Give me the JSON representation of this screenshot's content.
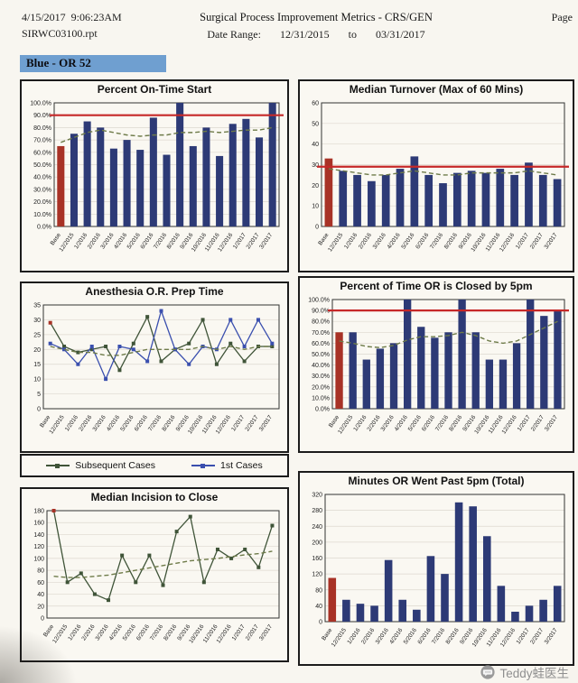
{
  "header": {
    "datetime": "4/15/2017  9:06:23AM",
    "report_file": "SIRWC03100.rpt",
    "title": "Surgical Process Improvement Metrics - CRS/GEN",
    "date_range_label": "Date Range:",
    "date_from": "12/31/2015",
    "date_to_word": "to",
    "date_to": "03/31/2017",
    "page_label": "Page"
  },
  "section_label": "Blue - OR 52",
  "watermark": {
    "text": "Teddy蛙医生"
  },
  "colors": {
    "bar": "#2d3a76",
    "base_bar": "#a83226",
    "ref_line": "#c62828",
    "trend_line": "#6e7b49",
    "series_subsequent": "#3f5438",
    "series_first": "#3a4fae",
    "section_highlight": "#6f9fd0"
  },
  "categories": [
    "Base",
    "12/2015",
    "1/2016",
    "2/2016",
    "3/2016",
    "4/2016",
    "5/2016",
    "6/2016",
    "7/2016",
    "8/2016",
    "9/2016",
    "10/2016",
    "11/2016",
    "12/2016",
    "1/2017",
    "2/2017",
    "3/2017"
  ],
  "chart_data": [
    {
      "type": "bar",
      "title": "Percent On-Time Start",
      "fmt": "pct",
      "ylim": [
        0,
        100
      ],
      "ytick": 10,
      "values": [
        65,
        75,
        85,
        80,
        63,
        70,
        62,
        88,
        58,
        100,
        65,
        80,
        57,
        83,
        87,
        72,
        100
      ],
      "trend": [
        68,
        72,
        76,
        78,
        76,
        74,
        73,
        74,
        74,
        76,
        76,
        77,
        76,
        77,
        78,
        78,
        80
      ],
      "ref": 90
    },
    {
      "type": "bar",
      "title": "Median Turnover (Max of 60 Mins)",
      "fmt": "int",
      "ylim": [
        0,
        60
      ],
      "ytick": 10,
      "values": [
        33,
        27,
        25,
        22,
        25,
        28,
        34,
        25,
        21,
        26,
        27,
        26,
        28,
        25,
        31,
        25,
        23
      ],
      "trend": [
        28,
        27,
        26,
        25,
        25,
        26,
        27,
        26,
        25,
        25,
        26,
        26,
        26,
        26,
        27,
        26,
        25
      ],
      "ref": 29
    },
    {
      "type": "line",
      "title": "Anesthesia O.R. Prep Time",
      "fmt": "int",
      "ylim": [
        0,
        35
      ],
      "ytick": 5,
      "series": [
        {
          "name": "Subsequent Cases",
          "color_key": "series_subsequent",
          "first_red": true,
          "values": [
            29,
            21,
            19,
            20,
            21,
            13,
            22,
            31,
            16,
            20,
            22,
            30,
            15,
            22,
            16,
            21,
            21
          ]
        },
        {
          "name": "1st Cases",
          "color_key": "series_first",
          "values": [
            22,
            20,
            15,
            21,
            10,
            21,
            20,
            16,
            33,
            20,
            15,
            21,
            20,
            30,
            21,
            30,
            22
          ]
        }
      ],
      "trend": [
        21,
        20,
        19,
        19,
        18,
        18,
        19,
        20,
        20,
        20,
        20,
        21,
        20,
        21,
        20,
        21,
        21
      ]
    },
    {
      "type": "bar",
      "title": "Percent of Time OR is Closed by 5pm",
      "fmt": "pct",
      "ylim": [
        0,
        100
      ],
      "ytick": 10,
      "values": [
        70,
        70,
        45,
        55,
        60,
        100,
        75,
        65,
        70,
        100,
        70,
        45,
        45,
        60,
        100,
        85,
        90
      ],
      "trend": [
        62,
        60,
        57,
        56,
        58,
        63,
        66,
        66,
        67,
        70,
        67,
        62,
        60,
        62,
        68,
        74,
        80
      ],
      "ref": 90
    },
    {
      "type": "line",
      "title": "Median Incision to Close",
      "fmt": "int",
      "ylim": [
        0,
        180
      ],
      "ytick": 20,
      "series": [
        {
          "name": "Median Incision to Close",
          "color_key": "series_subsequent",
          "first_red": true,
          "values": [
            180,
            60,
            75,
            40,
            30,
            105,
            60,
            105,
            55,
            145,
            170,
            60,
            115,
            100,
            115,
            85,
            155
          ]
        }
      ],
      "trend": [
        70,
        68,
        68,
        70,
        72,
        76,
        80,
        84,
        88,
        92,
        96,
        98,
        100,
        103,
        106,
        108,
        112
      ]
    },
    {
      "type": "bar",
      "title": "Minutes OR Went Past 5pm (Total)",
      "fmt": "int",
      "ylim": [
        0,
        320
      ],
      "ytick": 40,
      "values": [
        110,
        55,
        45,
        40,
        155,
        55,
        30,
        165,
        120,
        300,
        290,
        215,
        90,
        25,
        40,
        55,
        90
      ]
    }
  ]
}
